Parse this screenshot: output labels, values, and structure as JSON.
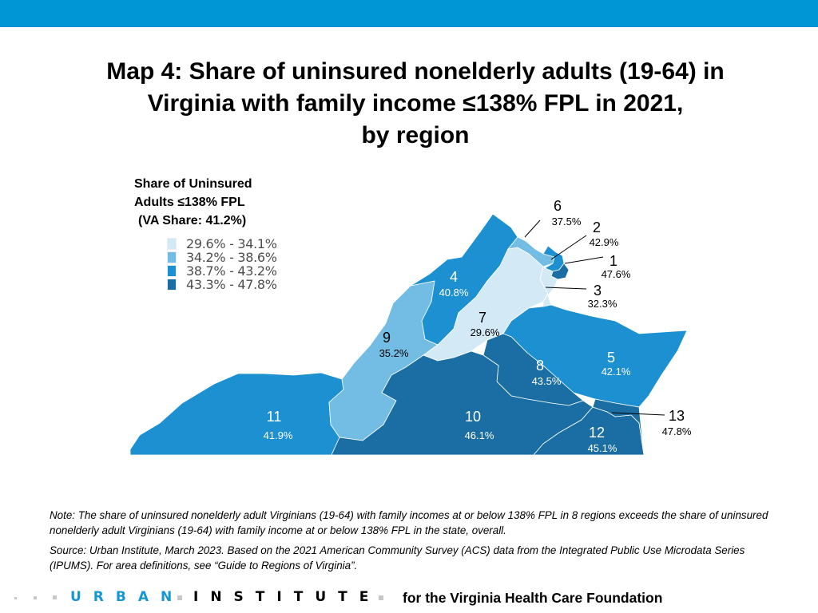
{
  "title": {
    "line1": "Map 4: Share of uninsured nonelderly adults (19-64) in",
    "line2": "Virginia with family income ≤138% FPL in 2021,",
    "line3": "by region"
  },
  "legend": {
    "title_line1": "Share of Uninsured",
    "title_line2": "Adults ≤138% FPL",
    "title_line3": "(VA Share: 41.2%)",
    "items": [
      {
        "label": "29.6% - 34.1%",
        "color": "#d4e9f6"
      },
      {
        "label": "34.2% - 38.6%",
        "color": "#73bde5"
      },
      {
        "label": "38.7% - 43.2%",
        "color": "#1d90d2"
      },
      {
        "label": "43.3% - 47.8%",
        "color": "#1a6ea3"
      }
    ]
  },
  "map_data": {
    "regions": [
      {
        "id": "1",
        "value": "47.6%",
        "share": 47.6,
        "color": "#1a6ea3"
      },
      {
        "id": "2",
        "value": "42.9%",
        "share": 42.9,
        "color": "#1d90d2"
      },
      {
        "id": "3",
        "value": "32.3%",
        "share": 32.3,
        "color": "#d4e9f6"
      },
      {
        "id": "4",
        "value": "40.8%",
        "share": 40.8,
        "color": "#1d90d2"
      },
      {
        "id": "5",
        "value": "42.1%",
        "share": 42.1,
        "color": "#1d90d2"
      },
      {
        "id": "6",
        "value": "37.5%",
        "share": 37.5,
        "color": "#73bde5"
      },
      {
        "id": "7",
        "value": "29.6%",
        "share": 29.6,
        "color": "#d4e9f6"
      },
      {
        "id": "8",
        "value": "43.5%",
        "share": 43.5,
        "color": "#1a6ea3"
      },
      {
        "id": "9",
        "value": "35.2%",
        "share": 35.2,
        "color": "#73bde5"
      },
      {
        "id": "10",
        "value": "46.1%",
        "share": 46.1,
        "color": "#1a6ea3"
      },
      {
        "id": "11",
        "value": "41.9%",
        "share": 41.9,
        "color": "#1d90d2"
      },
      {
        "id": "12",
        "value": "45.1%",
        "share": 45.1,
        "color": "#1a6ea3"
      },
      {
        "id": "13",
        "value": "47.8%",
        "share": 47.8,
        "color": "#1a6ea3"
      }
    ]
  },
  "note": "Note: The share of uninsured nonelderly adult Virginians (19-64) with family incomes at or below 138% FPL in 8 regions exceeds the share of uninsured nonelderly adult Virginians (19-64) with family income at or below 138% FPL in the state, overall.",
  "source": "Source: Urban Institute, March 2023. Based on the 2021 American Community Survey (ACS) data from the Integrated Public Use Microdata Series (IPUMS). For area definitions, see “Guide to Regions of Virginia”.",
  "footer": {
    "urban": "URBAN",
    "institute": "INSTITUTE",
    "tagline": "for the Virginia Health Care Foundation",
    "accent": "#1696d2"
  },
  "header_bar_color": "#0096d6"
}
